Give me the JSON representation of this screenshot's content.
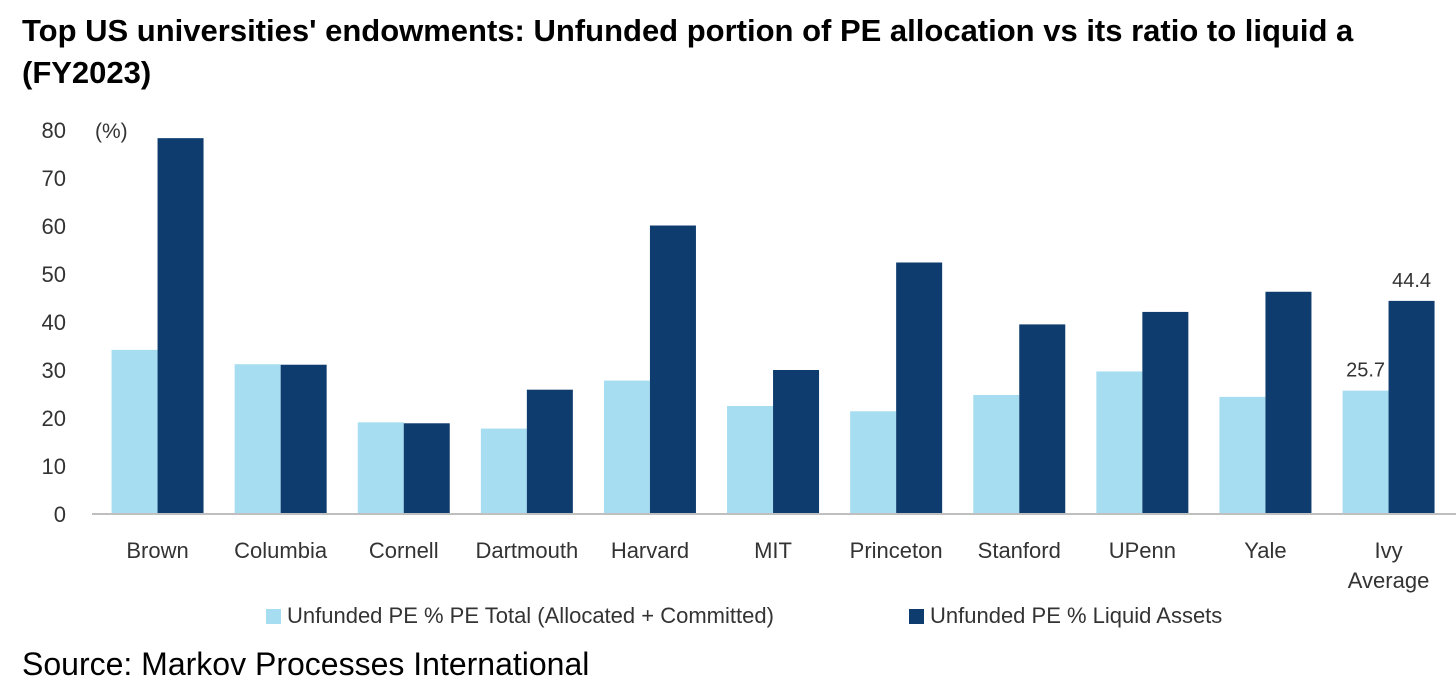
{
  "title_line1": "Top US universities' endowments: Unfunded portion of PE allocation vs its ratio to liquid a",
  "title_line2": "(FY2023)",
  "source": "Source: Markov Processes International",
  "colors": {
    "series1": "#a7ddf0",
    "series2": "#0e3c6e",
    "axis": "#bfbfbf",
    "text": "#333333"
  },
  "chart_data": {
    "type": "bar",
    "unit_label": "(%)",
    "ylim": [
      0,
      80
    ],
    "yticks": [
      0,
      10,
      20,
      30,
      40,
      50,
      60,
      70,
      80
    ],
    "grid": false,
    "legend_position": "bottom",
    "categories": [
      [
        "Brown"
      ],
      [
        "Columbia"
      ],
      [
        "Cornell"
      ],
      [
        "Dartmouth"
      ],
      [
        "Harvard"
      ],
      [
        "MIT"
      ],
      [
        "Princeton"
      ],
      [
        "Stanford"
      ],
      [
        "UPenn"
      ],
      [
        "Yale"
      ],
      [
        "Ivy",
        "Average"
      ]
    ],
    "series": [
      {
        "name": "Unfunded PE % PE Total (Allocated + Committed)",
        "values": [
          34.2,
          31.2,
          19.1,
          17.8,
          27.8,
          22.5,
          21.4,
          24.8,
          29.7,
          24.4,
          25.7
        ],
        "data_labels": {
          "10": "25.7"
        }
      },
      {
        "name": "Unfunded PE % Liquid Assets",
        "values": [
          78.3,
          31.1,
          18.9,
          25.9,
          60.1,
          30.0,
          52.4,
          39.5,
          42.1,
          46.3,
          44.4
        ],
        "data_labels": {
          "10": "44.4"
        }
      }
    ]
  }
}
